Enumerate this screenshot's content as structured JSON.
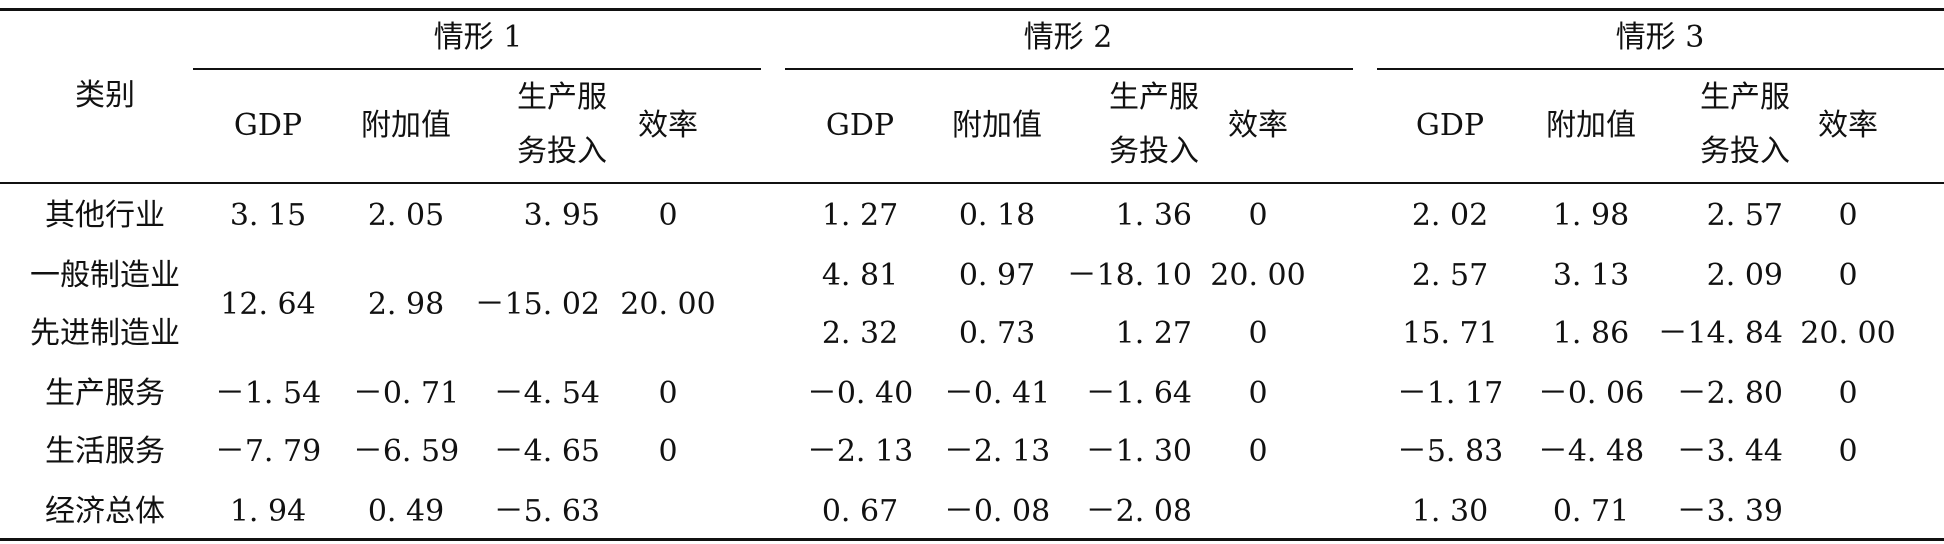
{
  "header": {
    "row_label": "类别",
    "groups": [
      "情形 1",
      "情形 2",
      "情形 3"
    ],
    "columns": [
      {
        "line1": "GDP",
        "line2": ""
      },
      {
        "line1": "附加值",
        "line2": ""
      },
      {
        "line1": "生产服",
        "line2": "务投入"
      },
      {
        "line1": "效率",
        "line2": ""
      }
    ]
  },
  "rows": [
    {
      "label": "其他行业",
      "values": [
        "3. 15",
        "2. 05",
        "3. 95",
        "0",
        "1. 27",
        "0. 18",
        "1. 36",
        "0",
        "2. 02",
        "1. 98",
        "2. 57",
        "0"
      ]
    },
    {
      "label": "一般制造业",
      "values": [
        "",
        "",
        "",
        "",
        "4. 81",
        "0. 97",
        "－18. 10",
        "20. 00",
        "2. 57",
        "3. 13",
        "2. 09",
        "0"
      ]
    },
    {
      "label": "先进制造业",
      "values": [
        "",
        "",
        "",
        "",
        "2. 32",
        "0. 73",
        "1. 27",
        "0",
        "15. 71",
        "1. 86",
        "－14. 84",
        "20. 00"
      ]
    },
    {
      "label": "生产服务",
      "values": [
        "－1. 54",
        "－0. 71",
        "－4. 54",
        "0",
        "－0. 40",
        "－0. 41",
        "－1. 64",
        "0",
        "－1. 17",
        "－0. 06",
        "－2. 80",
        "0"
      ]
    },
    {
      "label": "生活服务",
      "values": [
        "－7. 79",
        "－6. 59",
        "－4. 65",
        "0",
        "－2. 13",
        "－2. 13",
        "－1. 30",
        "0",
        "－5. 83",
        "－4. 48",
        "－3. 44",
        "0"
      ]
    },
    {
      "label": "经济总体",
      "values": [
        "1. 94",
        "0. 49",
        "－5. 63",
        "",
        "0. 67",
        "－0. 08",
        "－2. 08",
        "",
        "1. 30",
        "0. 71",
        "－3. 39",
        ""
      ]
    }
  ],
  "merged": {
    "label": "一般制造业 + 先进制造业 (情形 1)",
    "values": [
      "12. 64",
      "2. 98",
      "－15. 02",
      "20. 00"
    ]
  }
}
